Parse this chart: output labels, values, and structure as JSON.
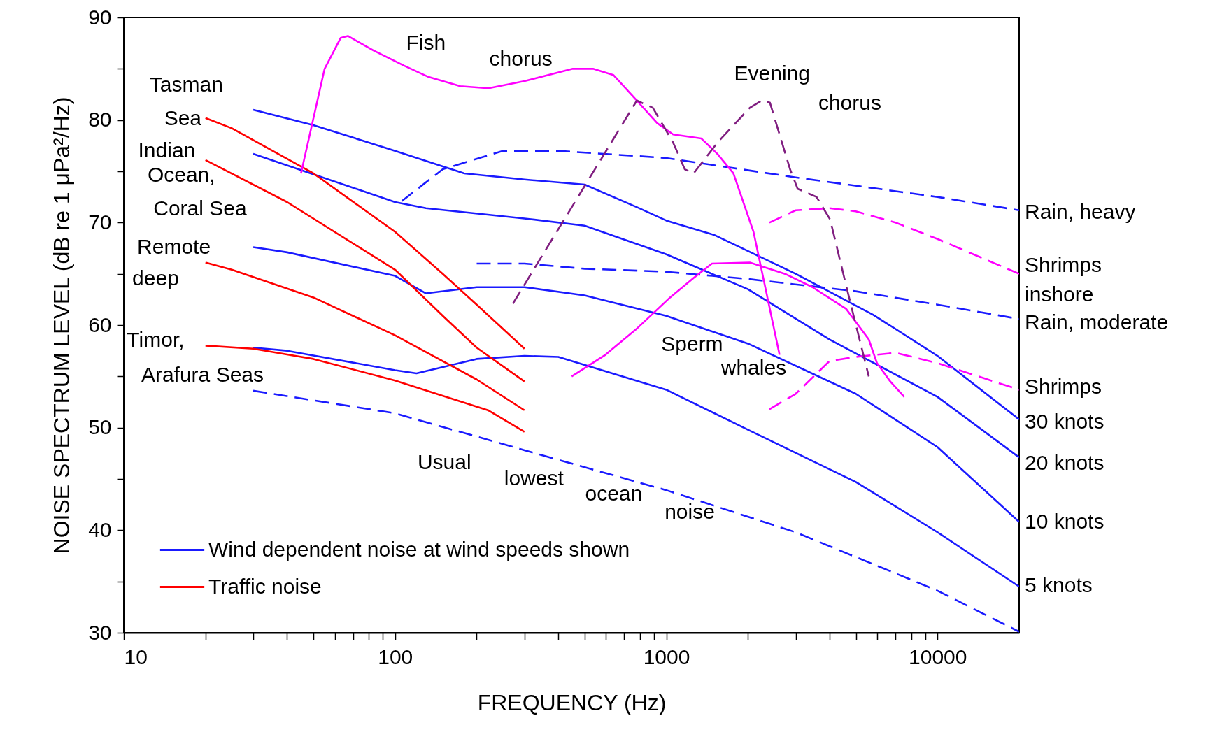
{
  "chart_data": {
    "type": "line",
    "xlabel": "FREQUENCY (Hz)",
    "ylabel": "NOISE SPECTRUM LEVEL (dB re 1 μPa²/Hz)",
    "log": "x",
    "legend": "bottom left",
    "xlim": [
      10,
      20000
    ],
    "ylim": [
      30,
      90
    ],
    "xticks": [
      10,
      {
        "value": 20,
        "label": null
      },
      {
        "value": 30,
        "label": null
      },
      {
        "value": 40,
        "label": null
      },
      {
        "value": 50,
        "label": null
      },
      {
        "value": 60,
        "label": null
      },
      {
        "value": 70,
        "label": null
      },
      {
        "value": 80,
        "label": null
      },
      {
        "value": 90,
        "label": null
      },
      100,
      {
        "value": 200,
        "label": null
      },
      {
        "value": 300,
        "label": null
      },
      {
        "value": 400,
        "label": null
      },
      {
        "value": 500,
        "label": null
      },
      {
        "value": 600,
        "label": null
      },
      {
        "value": 700,
        "label": null
      },
      {
        "value": 800,
        "label": null
      },
      {
        "value": 900,
        "label": null
      },
      1000,
      {
        "value": 2000,
        "label": null
      },
      {
        "value": 3000,
        "label": null
      },
      {
        "value": 4000,
        "label": null
      },
      {
        "value": 5000,
        "label": null
      },
      {
        "value": 6000,
        "label": null
      },
      {
        "value": 7000,
        "label": null
      },
      {
        "value": 8000,
        "label": null
      },
      {
        "value": 9000,
        "label": null
      },
      10000
    ],
    "yticks": [
      30,
      {
        "value": 35,
        "label": null
      },
      40,
      {
        "value": 45,
        "label": null
      },
      50,
      {
        "value": 55,
        "label": null
      },
      60,
      {
        "value": 65,
        "label": null
      },
      70,
      {
        "value": 75,
        "label": null
      },
      80,
      {
        "value": 85,
        "label": null
      },
      90
    ],
    "series": [
      {
        "name": "Wind dependent noise at wind speeds shown",
        "color": "#1a1aff",
        "x": [
          30,
          50,
          100,
          180,
          300,
          500,
          780,
          1000,
          1500,
          3000,
          5800,
          10000,
          20000
        ],
        "values": [
          81,
          79.5,
          77,
          74.8,
          74.2,
          73.7,
          71.5,
          70.2,
          68.8,
          65,
          61,
          57,
          50.8
        ]
      },
      {
        "color": "#1a1aff",
        "x": [
          30,
          100,
          130,
          300,
          500,
          1000,
          2000,
          4000,
          10000,
          20000
        ],
        "values": [
          76.7,
          72,
          71.4,
          70.4,
          69.7,
          66.9,
          63.5,
          58.6,
          53,
          47.1
        ]
      },
      {
        "color": "#1a1aff",
        "x": [
          30,
          40,
          100,
          130,
          200,
          300,
          500,
          1000,
          2000,
          5000,
          10000,
          20000
        ],
        "values": [
          67.6,
          67.1,
          64.8,
          63.1,
          63.7,
          63.7,
          62.9,
          60.9,
          58.2,
          53.3,
          48.1,
          40.8
        ]
      },
      {
        "color": "#1a1aff",
        "x": [
          30,
          40,
          100,
          120,
          200,
          300,
          400,
          1000,
          2000,
          5000,
          10000,
          20000
        ],
        "values": [
          57.8,
          57.5,
          55.6,
          55.3,
          56.7,
          57,
          56.9,
          53.7,
          49.8,
          44.7,
          39.8,
          34.5
        ]
      },
      {
        "color": "#1a1aff",
        "line_style": "dashed",
        "x": [
          30,
          100,
          300,
          1000,
          3000,
          10000,
          20000
        ],
        "values": [
          53.6,
          51.4,
          47.8,
          43.9,
          39.8,
          34.1,
          30.1
        ]
      },
      {
        "name": "Traffic noise",
        "color": "#ff0000",
        "x": [
          20,
          25,
          50,
          100,
          150,
          200,
          300
        ],
        "values": [
          80.2,
          79.2,
          74.8,
          69.1,
          65,
          62,
          57.7
        ]
      },
      {
        "color": "#ff0000",
        "x": [
          20,
          40,
          100,
          150,
          200,
          300
        ],
        "values": [
          76.1,
          72,
          65.4,
          60.9,
          57.8,
          54.5
        ]
      },
      {
        "color": "#ff0000",
        "x": [
          20,
          25,
          50,
          100,
          200,
          300
        ],
        "values": [
          66.1,
          65.4,
          62.7,
          59,
          54.7,
          51.7
        ]
      },
      {
        "color": "#ff0000",
        "x": [
          20,
          30,
          50,
          100,
          220,
          300
        ],
        "values": [
          58,
          57.7,
          56.7,
          54.6,
          51.7,
          49.6
        ]
      },
      {
        "color": "#1a1aff",
        "line_style": "dashed",
        "x": [
          106,
          150,
          250,
          400,
          1000,
          3000,
          10000,
          20000
        ],
        "values": [
          72.1,
          75.2,
          77,
          77,
          76.3,
          74.4,
          72.5,
          71.2
        ]
      },
      {
        "color": "#1a1aff",
        "line_style": "dashed",
        "x": [
          200,
          300,
          500,
          1000,
          2000,
          5000,
          10000,
          20000
        ],
        "values": [
          66,
          66,
          65.5,
          65.2,
          64.5,
          63.3,
          62,
          60.6
        ]
      },
      {
        "color": "#ff00ff",
        "line_style": "dashed",
        "x": [
          2400,
          3000,
          4000,
          5000,
          7000,
          10000,
          20000
        ],
        "values": [
          70,
          71.2,
          71.4,
          71.1,
          70,
          68.4,
          65
        ]
      },
      {
        "color": "#ff00ff",
        "line_style": "dashed",
        "x": [
          2400,
          3000,
          4000,
          5000,
          7000,
          10000,
          20000
        ],
        "values": [
          51.8,
          53.3,
          56.5,
          56.9,
          57.3,
          56.3,
          53.7
        ]
      },
      {
        "color": "#ff00ff",
        "x": [
          45,
          55,
          63,
          67,
          83,
          108,
          133,
          174,
          221,
          300,
          452,
          537,
          638,
          779,
          926,
          1060,
          1347,
          1544,
          1768,
          2097,
          2616
        ],
        "values": [
          74.8,
          85,
          88,
          88.2,
          86.8,
          85.3,
          84.2,
          83.3,
          83.1,
          83.8,
          85,
          85,
          84.4,
          81.9,
          79.7,
          78.6,
          78.2,
          76.7,
          74.8,
          69.1,
          57.1
        ]
      },
      {
        "color": "#ff00ff",
        "x": [
          448,
          596,
          782,
          1033,
          1262,
          1474,
          2033,
          2740,
          3461,
          4600,
          5580,
          5980,
          6700,
          7540
        ],
        "values": [
          55,
          57.1,
          59.7,
          62.7,
          64.6,
          66,
          66.1,
          65,
          63.7,
          61.6,
          58.6,
          56.3,
          54.5,
          53
        ]
      },
      {
        "color": "#801e80",
        "line_style": "dashed",
        "x": [
          272,
          779,
          892,
          1060,
          1170,
          1262,
          1544,
          2033,
          2250,
          2410,
          2860,
          3050,
          3580,
          4020,
          4600,
          5070,
          5580
        ],
        "values": [
          62.1,
          81.9,
          81.2,
          77.8,
          75.2,
          74.8,
          77.8,
          81.2,
          81.9,
          81.7,
          75.2,
          73.3,
          72.5,
          70.3,
          63.9,
          59.4,
          55
        ]
      }
    ],
    "annotations": [
      "Tasman",
      "Sea",
      "Indian",
      "Ocean,",
      "Coral Sea",
      "Remote",
      "deep",
      "Timor,",
      "Arafura Seas",
      "Fish",
      "chorus",
      "Evening",
      "chorus",
      "Sperm",
      "whales",
      "Usual",
      "lowest",
      "ocean",
      "noise",
      "Rain, heavy",
      "Shrimps",
      "inshore",
      "Rain, moderate",
      "Shrimps",
      "30 knots",
      "20 knots",
      "10 knots",
      "5 knots"
    ]
  }
}
